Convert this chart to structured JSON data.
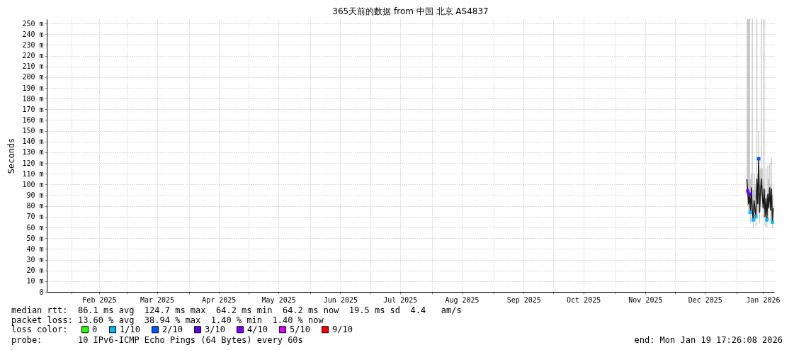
{
  "chart_data": {
    "type": "line",
    "title": "365天前的数据 from 中国 北京 AS4837",
    "ylabel": "Seconds",
    "legend_title": "loss color:",
    "legend": "bottom",
    "grid": true,
    "xlim": [
      "2025-01-19T17:26",
      "2026-01-19T17:26"
    ],
    "xticks": [
      {
        "value": "2025-02-01",
        "label": null
      },
      {
        "value": "2025-02-15",
        "label": "Feb 2025"
      },
      {
        "value": "2025-03-01",
        "label": null
      },
      {
        "value": "2025-03-16",
        "label": "Mar 2025"
      },
      {
        "value": "2025-04-01",
        "label": null
      },
      {
        "value": "2025-04-16",
        "label": "Apr 2025"
      },
      {
        "value": "2025-05-01",
        "label": null
      },
      {
        "value": "2025-05-16",
        "label": "May 2025"
      },
      {
        "value": "2025-06-01",
        "label": null
      },
      {
        "value": "2025-06-16",
        "label": "Jun 2025"
      },
      {
        "value": "2025-07-01",
        "label": null
      },
      {
        "value": "2025-07-16",
        "label": "Jul 2025"
      },
      {
        "value": "2025-08-01",
        "label": null
      },
      {
        "value": "2025-08-16",
        "label": "Aug 2025"
      },
      {
        "value": "2025-09-01",
        "label": null
      },
      {
        "value": "2025-09-16",
        "label": "Sep 2025"
      },
      {
        "value": "2025-10-01",
        "label": null
      },
      {
        "value": "2025-10-16",
        "label": "Oct 2025"
      },
      {
        "value": "2025-11-01",
        "label": null
      },
      {
        "value": "2025-11-16",
        "label": "Nov 2025"
      },
      {
        "value": "2025-12-01",
        "label": null
      },
      {
        "value": "2025-12-16",
        "label": "Dec 2025"
      },
      {
        "value": "2026-01-01",
        "label": null
      },
      {
        "value": "2026-01-14",
        "label": "Jan 2026"
      }
    ],
    "ylim": [
      0,
      254
    ],
    "yticks": [
      0,
      {
        "value": 10,
        "label": "10 m"
      },
      {
        "value": 20,
        "label": "20 m"
      },
      {
        "value": 30,
        "label": "30 m"
      },
      {
        "value": 40,
        "label": "40 m"
      },
      {
        "value": 50,
        "label": "50 m"
      },
      {
        "value": 60,
        "label": "60 m"
      },
      {
        "value": 70,
        "label": "70 m"
      },
      {
        "value": 80,
        "label": "80 m"
      },
      {
        "value": 90,
        "label": "90 m"
      },
      {
        "value": 100,
        "label": "100 m"
      },
      {
        "value": 110,
        "label": "110 m"
      },
      {
        "value": 120,
        "label": "120 m"
      },
      {
        "value": 130,
        "label": "130 m"
      },
      {
        "value": 140,
        "label": "140 m"
      },
      {
        "value": 150,
        "label": "150 m"
      },
      {
        "value": 160,
        "label": "160 m"
      },
      {
        "value": 170,
        "label": "170 m"
      },
      {
        "value": 180,
        "label": "180 m"
      },
      {
        "value": 190,
        "label": "190 m"
      },
      {
        "value": 200,
        "label": "200 m"
      },
      {
        "value": 210,
        "label": "210 m"
      },
      {
        "value": 220,
        "label": "220 m"
      },
      {
        "value": 230,
        "label": "230 m"
      },
      {
        "value": 240,
        "label": "240 m"
      },
      {
        "value": 250,
        "label": "250 m"
      }
    ],
    "series": [
      {
        "color": "#1a1a1a",
        "x": [
          "2026-01-06T00:00",
          "2026-01-06T11:00",
          "2026-01-06T22:00",
          "2026-01-07T09:00",
          "2026-01-07T20:00",
          "2026-01-08T07:00",
          "2026-01-08T18:00",
          "2026-01-09T05:00",
          "2026-01-09T16:00",
          "2026-01-10T03:00",
          "2026-01-10T14:00",
          "2026-01-11T01:00",
          "2026-01-11T12:00",
          "2026-01-11T23:00",
          "2026-01-12T10:00",
          "2026-01-12T21:00",
          "2026-01-13T08:00",
          "2026-01-13T19:00",
          "2026-01-14T06:00",
          "2026-01-14T17:00",
          "2026-01-15T04:00",
          "2026-01-15T15:00",
          "2026-01-16T02:00",
          "2026-01-16T13:00",
          "2026-01-17T00:00",
          "2026-01-17T11:00",
          "2026-01-17T22:00",
          "2026-01-18T09:00",
          "2026-01-18T20:00",
          "2026-01-19T07:00"
        ],
        "values": [
          105,
          94,
          82,
          91,
          74,
          97,
          76,
          67,
          85,
          76,
          70,
          105,
          82,
          124,
          74,
          94,
          105,
          89,
          78,
          96,
          70,
          87,
          67,
          91,
          78,
          97,
          76,
          96,
          65,
          78
        ],
        "lower": [
          90,
          80,
          72,
          78,
          64,
          85,
          66,
          60,
          74,
          66,
          61,
          90,
          72,
          100,
          64,
          80,
          90,
          78,
          68,
          82,
          61,
          76,
          60,
          78,
          68,
          84,
          66,
          82,
          60,
          66
        ],
        "upper": [
          254,
          254,
          254,
          254,
          105,
          110,
          254,
          95,
          110,
          100,
          95,
          254,
          110,
          150,
          100,
          115,
          254,
          115,
          105,
          254,
          95,
          115,
          90,
          118,
          105,
          120,
          100,
          125,
          90,
          100
        ]
      },
      {
        "type": "scatter",
        "name": "0",
        "color": "#26ff00"
      },
      {
        "type": "scatter",
        "name": "1/10",
        "color": "#00b8ff",
        "x": [
          "2026-01-07T20:00",
          "2026-01-09T05:00",
          "2026-01-10T14:00",
          "2026-01-16T02:00",
          "2026-01-18T20:00"
        ],
        "values": [
          74,
          67,
          70,
          67,
          65
        ]
      },
      {
        "type": "scatter",
        "name": "2/10",
        "color": "#0059ff",
        "x": [
          "2026-01-11T23:00"
        ],
        "values": [
          124
        ]
      },
      {
        "type": "scatter",
        "name": "3/10",
        "color": "#5e00ff",
        "x": [
          "2026-01-07T09:00"
        ],
        "values": [
          91
        ]
      },
      {
        "type": "scatter",
        "name": "4/10",
        "color": "#7e00ff",
        "x": [
          "2026-01-06T11:00"
        ],
        "values": [
          94
        ]
      },
      {
        "type": "scatter",
        "name": "5/10",
        "color": "#dd00ff"
      },
      {
        "type": "scatter",
        "name": "9/10",
        "color": "#ff0000"
      }
    ],
    "annotations": [
      "median rtt:  86.1 ms avg  124.7 ms max  64.2 ms min  64.2 ms now  19.5 ms sd  4.4   am/s",
      "packet loss: 13.60 % avg  38.94 % max  1.40 % min  1.40 % now",
      "probe:       10 IPv6-ICMP Echo Pings (64 Bytes) every 60s",
      "end: Mon Jan 19 17:26:08 2026"
    ]
  }
}
